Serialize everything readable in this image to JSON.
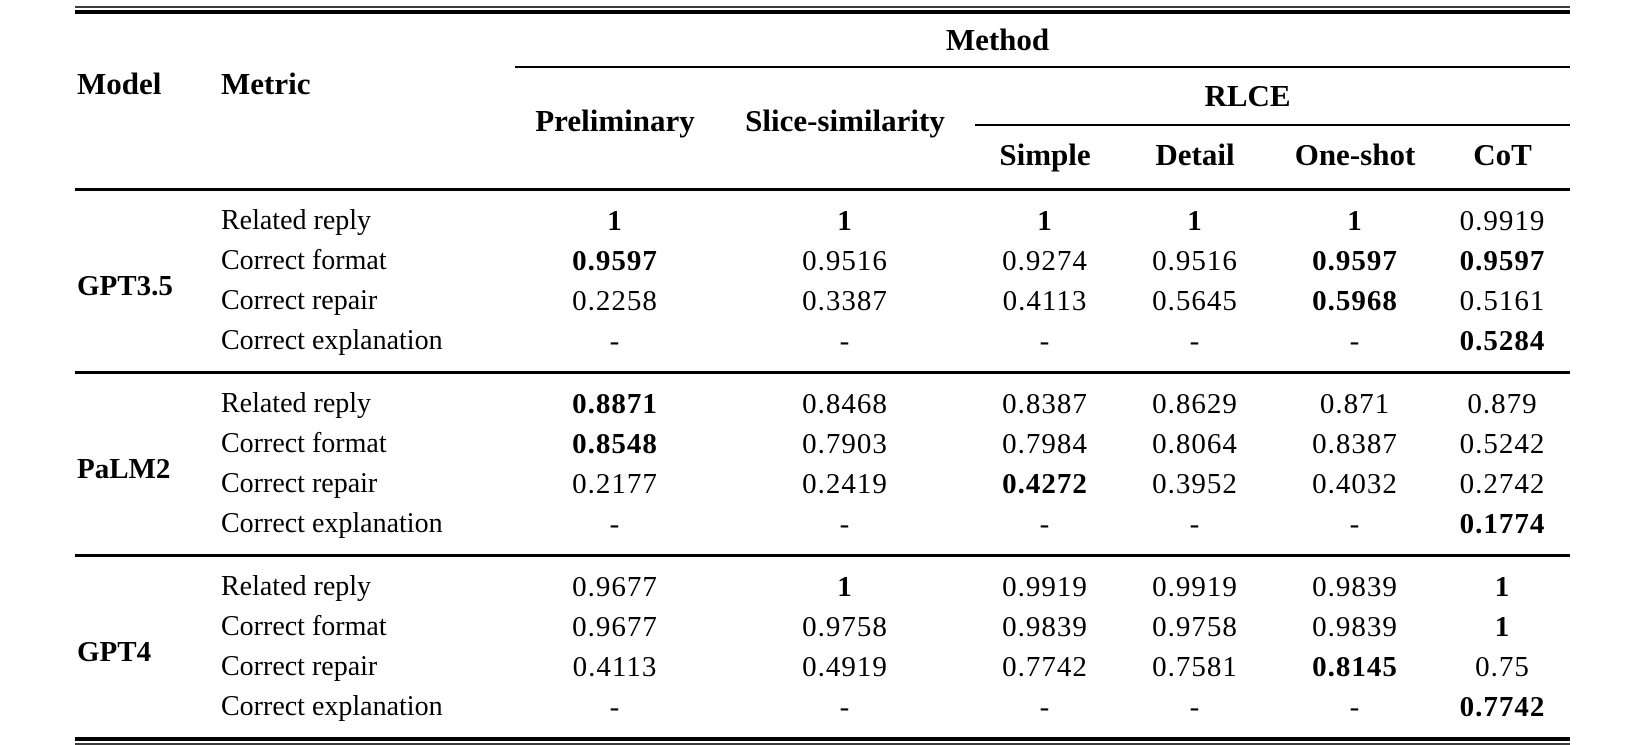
{
  "table": {
    "header": {
      "model": "Model",
      "metric": "Metric",
      "method": "Method",
      "preliminary": "Preliminary",
      "slice_similarity": "Slice-similarity",
      "rlce": "RLCE",
      "rlce_sub": [
        "Simple",
        "Detail",
        "One-shot",
        "CoT"
      ]
    },
    "columns": [
      "Preliminary",
      "Slice-similarity",
      "Simple",
      "Detail",
      "One-shot",
      "CoT"
    ],
    "groups": [
      {
        "model": "GPT3.5",
        "rows": [
          {
            "metric": "Related reply",
            "values": [
              {
                "v": "1",
                "b": true
              },
              {
                "v": "1",
                "b": true
              },
              {
                "v": "1",
                "b": true
              },
              {
                "v": "1",
                "b": true
              },
              {
                "v": "1",
                "b": true
              },
              {
                "v": "0.9919",
                "b": false
              }
            ]
          },
          {
            "metric": "Correct format",
            "values": [
              {
                "v": "0.9597",
                "b": true
              },
              {
                "v": "0.9516",
                "b": false
              },
              {
                "v": "0.9274",
                "b": false
              },
              {
                "v": "0.9516",
                "b": false
              },
              {
                "v": "0.9597",
                "b": true
              },
              {
                "v": "0.9597",
                "b": true
              }
            ]
          },
          {
            "metric": "Correct repair",
            "values": [
              {
                "v": "0.2258",
                "b": false
              },
              {
                "v": "0.3387",
                "b": false
              },
              {
                "v": "0.4113",
                "b": false
              },
              {
                "v": "0.5645",
                "b": false
              },
              {
                "v": "0.5968",
                "b": true
              },
              {
                "v": "0.5161",
                "b": false
              }
            ]
          },
          {
            "metric": "Correct explanation",
            "values": [
              {
                "v": "-",
                "b": false
              },
              {
                "v": "-",
                "b": false
              },
              {
                "v": "-",
                "b": false
              },
              {
                "v": "-",
                "b": false
              },
              {
                "v": "-",
                "b": false
              },
              {
                "v": "0.5284",
                "b": true
              }
            ]
          }
        ]
      },
      {
        "model": "PaLM2",
        "rows": [
          {
            "metric": "Related reply",
            "values": [
              {
                "v": "0.8871",
                "b": true
              },
              {
                "v": "0.8468",
                "b": false
              },
              {
                "v": "0.8387",
                "b": false
              },
              {
                "v": "0.8629",
                "b": false
              },
              {
                "v": "0.871",
                "b": false
              },
              {
                "v": "0.879",
                "b": false
              }
            ]
          },
          {
            "metric": "Correct format",
            "values": [
              {
                "v": "0.8548",
                "b": true
              },
              {
                "v": "0.7903",
                "b": false
              },
              {
                "v": "0.7984",
                "b": false
              },
              {
                "v": "0.8064",
                "b": false
              },
              {
                "v": "0.8387",
                "b": false
              },
              {
                "v": "0.5242",
                "b": false
              }
            ]
          },
          {
            "metric": "Correct repair",
            "values": [
              {
                "v": "0.2177",
                "b": false
              },
              {
                "v": "0.2419",
                "b": false
              },
              {
                "v": "0.4272",
                "b": true
              },
              {
                "v": "0.3952",
                "b": false
              },
              {
                "v": "0.4032",
                "b": false
              },
              {
                "v": "0.2742",
                "b": false
              }
            ]
          },
          {
            "metric": "Correct explanation",
            "values": [
              {
                "v": "-",
                "b": false
              },
              {
                "v": "-",
                "b": false
              },
              {
                "v": "-",
                "b": false
              },
              {
                "v": "-",
                "b": false
              },
              {
                "v": "-",
                "b": false
              },
              {
                "v": "0.1774",
                "b": true
              }
            ]
          }
        ]
      },
      {
        "model": "GPT4",
        "rows": [
          {
            "metric": "Related reply",
            "values": [
              {
                "v": "0.9677",
                "b": false
              },
              {
                "v": "1",
                "b": true
              },
              {
                "v": "0.9919",
                "b": false
              },
              {
                "v": "0.9919",
                "b": false
              },
              {
                "v": "0.9839",
                "b": false
              },
              {
                "v": "1",
                "b": true
              }
            ]
          },
          {
            "metric": "Correct format",
            "values": [
              {
                "v": "0.9677",
                "b": false
              },
              {
                "v": "0.9758",
                "b": false
              },
              {
                "v": "0.9839",
                "b": false
              },
              {
                "v": "0.9758",
                "b": false
              },
              {
                "v": "0.9839",
                "b": false
              },
              {
                "v": "1",
                "b": true
              }
            ]
          },
          {
            "metric": "Correct repair",
            "values": [
              {
                "v": "0.4113",
                "b": false
              },
              {
                "v": "0.4919",
                "b": false
              },
              {
                "v": "0.7742",
                "b": false
              },
              {
                "v": "0.7581",
                "b": false
              },
              {
                "v": "0.8145",
                "b": true
              },
              {
                "v": "0.75",
                "b": false
              }
            ]
          },
          {
            "metric": "Correct explanation",
            "values": [
              {
                "v": "-",
                "b": false
              },
              {
                "v": "-",
                "b": false
              },
              {
                "v": "-",
                "b": false
              },
              {
                "v": "-",
                "b": false
              },
              {
                "v": "-",
                "b": false
              },
              {
                "v": "0.7742",
                "b": true
              }
            ]
          }
        ]
      }
    ]
  },
  "colors": {
    "text": "#000000",
    "rule": "#000000",
    "background": "#ffffff"
  }
}
